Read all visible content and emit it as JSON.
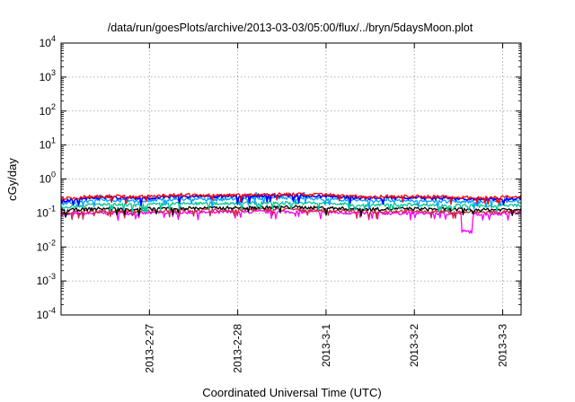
{
  "chart_data": {
    "type": "line",
    "title": "/data/run/goesPlots/archive/2013-03-03/05:00/flux/../bryn/5daysMoon.plot",
    "xlabel": "Coordinated Universal Time (UTC)",
    "ylabel": "cGy/day",
    "yscale": "log",
    "ylim": [
      0.0001,
      10000
    ],
    "yticks": [
      {
        "base": "10",
        "exp": "-4"
      },
      {
        "base": "10",
        "exp": "-3"
      },
      {
        "base": "10",
        "exp": "-2"
      },
      {
        "base": "10",
        "exp": "-1"
      },
      {
        "base": "10",
        "exp": "0"
      },
      {
        "base": "10",
        "exp": "1"
      },
      {
        "base": "10",
        "exp": "2"
      },
      {
        "base": "10",
        "exp": "3"
      },
      {
        "base": "10",
        "exp": "4"
      }
    ],
    "xlim": [
      "2013-02-26T00:00",
      "2013-03-03T05:00"
    ],
    "xticks": [
      "2013-2-27",
      "2013-2-28",
      "2013-3-1",
      "2013-3-2",
      "2013-3-3"
    ],
    "grid": true,
    "series": [
      {
        "color": "#ff0000",
        "values": [
          0.26,
          0.32,
          0.3,
          0.34,
          0.33,
          0.35,
          0.36,
          0.34,
          0.3,
          0.31,
          0.3,
          0.28,
          0.3
        ]
      },
      {
        "color": "#0000ff",
        "values": [
          0.23,
          0.29,
          0.27,
          0.31,
          0.3,
          0.32,
          0.33,
          0.31,
          0.27,
          0.28,
          0.27,
          0.25,
          0.27
        ]
      },
      {
        "color": "#00a0ff",
        "values": [
          0.19,
          0.24,
          0.22,
          0.26,
          0.25,
          0.27,
          0.28,
          0.26,
          0.22,
          0.23,
          0.22,
          0.21,
          0.23
        ]
      },
      {
        "color": "#00c896",
        "values": [
          0.15,
          0.18,
          0.17,
          0.19,
          0.19,
          0.2,
          0.2,
          0.19,
          0.17,
          0.18,
          0.17,
          0.16,
          0.17
        ]
      },
      {
        "color": "#000000",
        "values": [
          0.12,
          0.135,
          0.13,
          0.14,
          0.14,
          0.145,
          0.15,
          0.14,
          0.13,
          0.135,
          0.13,
          0.125,
          0.13
        ]
      },
      {
        "color": "#ff00ff",
        "values": [
          0.09,
          0.1,
          0.098,
          0.105,
          0.104,
          0.108,
          0.11,
          0.105,
          0.097,
          0.1,
          0.098,
          0.094,
          0.1
        ]
      },
      {
        "color": "#c8283c",
        "values": [
          0.1,
          0.115,
          0.11,
          0.12,
          0.12,
          0.125,
          0.128,
          0.12,
          0.11,
          0.115,
          0.11,
          0.105,
          0.11
        ]
      }
    ]
  }
}
